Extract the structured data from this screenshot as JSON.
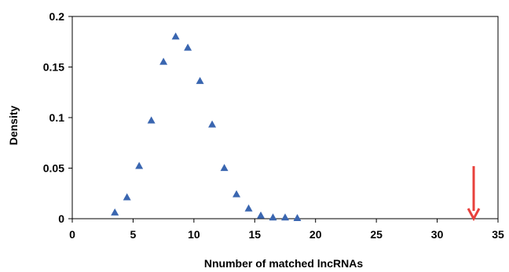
{
  "chart_data": {
    "type": "scatter",
    "title": "",
    "xlabel": "Nnumber of matched lncRNAs",
    "ylabel": "Density",
    "xlim": [
      0,
      35
    ],
    "ylim": [
      0,
      0.2
    ],
    "xticks": [
      0,
      5,
      10,
      15,
      20,
      25,
      30,
      35
    ],
    "yticks": [
      0,
      0.05,
      0.1,
      0.15,
      0.2
    ],
    "xtick_labels": [
      "0",
      "5",
      "10",
      "15",
      "20",
      "25",
      "30",
      "35"
    ],
    "ytick_labels": [
      "0",
      "0.05",
      "0.1",
      "0.15",
      "0.2"
    ],
    "grid": false,
    "legend": "none",
    "marker": "triangle",
    "marker_color": "#3a66b0",
    "series": [
      {
        "x": [
          3.5,
          4.5,
          5.5,
          6.5,
          7.5,
          8.5,
          9.5,
          10.5,
          11.5,
          12.5,
          13.5,
          14.5,
          15.5,
          16.5,
          17.5,
          18.5
        ],
        "y": [
          0.006,
          0.021,
          0.052,
          0.097,
          0.155,
          0.18,
          0.169,
          0.136,
          0.093,
          0.05,
          0.024,
          0.01,
          0.003,
          0.001,
          0.001,
          0.0005
        ]
      }
    ],
    "annotations": [
      {
        "type": "arrow",
        "x": 33,
        "y_from": 0.052,
        "y_to": 0.0,
        "color": "#e8413c"
      }
    ]
  }
}
